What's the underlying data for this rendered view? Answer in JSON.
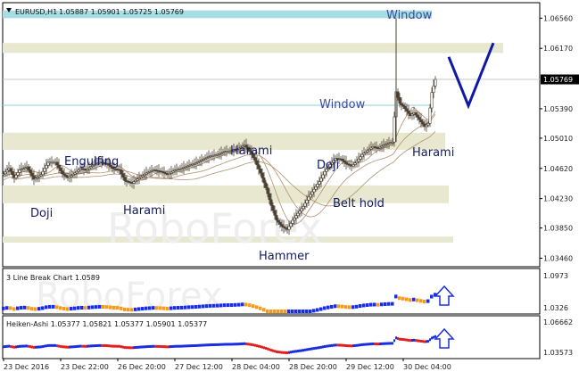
{
  "header": {
    "symbol": "EURUSD,H1",
    "ohlc": "1.05887 1.05901 1.05725 1.05769"
  },
  "watermark": "RoboForex",
  "colors": {
    "zone": "#e8e8d0",
    "window": "#a8dde3",
    "window_line": "#8ccfd8",
    "candle": "#4a3f30",
    "ma": "#b09070",
    "forecast": "#1018a8",
    "label": "#111b66",
    "blue": "#1a2ee0",
    "orange": "#f09a2a",
    "red": "#e02020"
  },
  "price_axis": {
    "ticks": [
      "1.06560",
      "1.06170",
      "1.05390",
      "1.05010",
      "1.04620",
      "1.04230",
      "1.03850",
      "1.03460"
    ],
    "current_price": "1.05769"
  },
  "time_axis": [
    "23 Dec 2016",
    "23 Dec 22:00",
    "26 Dec 20:00",
    "27 Dec 12:00",
    "28 Dec 04:00",
    "28 Dec 20:00",
    "29 Dec 12:00",
    "30 Dec 04:00"
  ],
  "annotations": [
    "Window",
    "Window",
    "Engulfing",
    "Doji",
    "Harami",
    "Harami",
    "Doji",
    "Belt hold",
    "Harami",
    "Hammer"
  ],
  "subpanel1": {
    "title": "3 Line Break Chart 1.0589",
    "ticks": [
      "1.0973",
      "1.0326"
    ],
    "arrow": "up-arrow-icon"
  },
  "subpanel2": {
    "title": "Heiken-Ashi 1.05377 1.05821 1.05377 1.05901 1.05377",
    "ticks": [
      "1.06662",
      "1.03573"
    ],
    "arrow": "up-arrow-icon"
  },
  "chart_data": {
    "type": "candlestick",
    "symbol": "EURUSD",
    "timeframe": "H1",
    "ylim": [
      1.0335,
      1.0676
    ],
    "x_range": [
      "23 Dec 2016",
      "30 Dec 04:00"
    ],
    "last": {
      "open": 1.05887,
      "high": 1.05901,
      "low": 1.05725,
      "close": 1.05769
    },
    "price_path": [
      [
        0,
        1.0455
      ],
      [
        6,
        1.0462
      ],
      [
        12,
        1.045
      ],
      [
        18,
        1.046
      ],
      [
        26,
        1.0464
      ],
      [
        34,
        1.0448
      ],
      [
        42,
        1.0454
      ],
      [
        50,
        1.047
      ],
      [
        58,
        1.047
      ],
      [
        66,
        1.0455
      ],
      [
        72,
        1.045
      ],
      [
        80,
        1.0456
      ],
      [
        86,
        1.0462
      ],
      [
        92,
        1.046
      ],
      [
        100,
        1.0466
      ],
      [
        108,
        1.047
      ],
      [
        116,
        1.0468
      ],
      [
        122,
        1.0462
      ],
      [
        130,
        1.046
      ],
      [
        136,
        1.0446
      ],
      [
        144,
        1.0443
      ],
      [
        152,
        1.045
      ],
      [
        160,
        1.0456
      ],
      [
        168,
        1.046
      ],
      [
        176,
        1.0458
      ],
      [
        184,
        1.0454
      ],
      [
        192,
        1.046
      ],
      [
        200,
        1.0462
      ],
      [
        208,
        1.0466
      ],
      [
        216,
        1.0469
      ],
      [
        224,
        1.0474
      ],
      [
        232,
        1.0478
      ],
      [
        240,
        1.048
      ],
      [
        248,
        1.0484
      ],
      [
        256,
        1.0485
      ],
      [
        264,
        1.0488
      ],
      [
        270,
        1.0492
      ],
      [
        276,
        1.0484
      ],
      [
        282,
        1.0472
      ],
      [
        288,
        1.0456
      ],
      [
        294,
        1.0437
      ],
      [
        300,
        1.0414
      ],
      [
        306,
        1.0395
      ],
      [
        312,
        1.0387
      ],
      [
        318,
        1.0383
      ],
      [
        324,
        1.0395
      ],
      [
        330,
        1.0404
      ],
      [
        336,
        1.0413
      ],
      [
        342,
        1.0425
      ],
      [
        348,
        1.0435
      ],
      [
        354,
        1.0445
      ],
      [
        360,
        1.0458
      ],
      [
        366,
        1.0467
      ],
      [
        372,
        1.0475
      ],
      [
        378,
        1.0474
      ],
      [
        384,
        1.0468
      ],
      [
        390,
        1.0465
      ],
      [
        396,
        1.0471
      ],
      [
        402,
        1.048
      ],
      [
        408,
        1.0485
      ],
      [
        414,
        1.049
      ],
      [
        420,
        1.0488
      ],
      [
        426,
        1.0492
      ],
      [
        432,
        1.0495
      ],
      [
        436,
        1.0496
      ],
      [
        440,
        1.0561
      ],
      [
        444,
        1.0546
      ],
      [
        448,
        1.0542
      ],
      [
        452,
        1.0536
      ],
      [
        456,
        1.053
      ],
      [
        460,
        1.0534
      ],
      [
        464,
        1.0528
      ],
      [
        468,
        1.0522
      ],
      [
        472,
        1.0516
      ],
      [
        476,
        1.052
      ],
      [
        480,
        1.056
      ],
      [
        484,
        1.0577
      ]
    ],
    "price_path_note_x": "bar index",
    "zones": [
      {
        "kind": "window",
        "from": 1.0656,
        "to": 1.0666
      },
      {
        "kind": "resistance",
        "from": 1.0611,
        "to": 1.0624
      },
      {
        "kind": "support",
        "from": 1.0486,
        "to": 1.0508
      },
      {
        "kind": "support",
        "from": 1.0417,
        "to": 1.044
      },
      {
        "kind": "support",
        "from": 1.0366,
        "to": 1.0374
      }
    ],
    "window_line": 1.05435,
    "forecast": {
      "direction": "down then up",
      "start": 1.0606,
      "low": 1.0543,
      "end": 1.0624
    }
  }
}
